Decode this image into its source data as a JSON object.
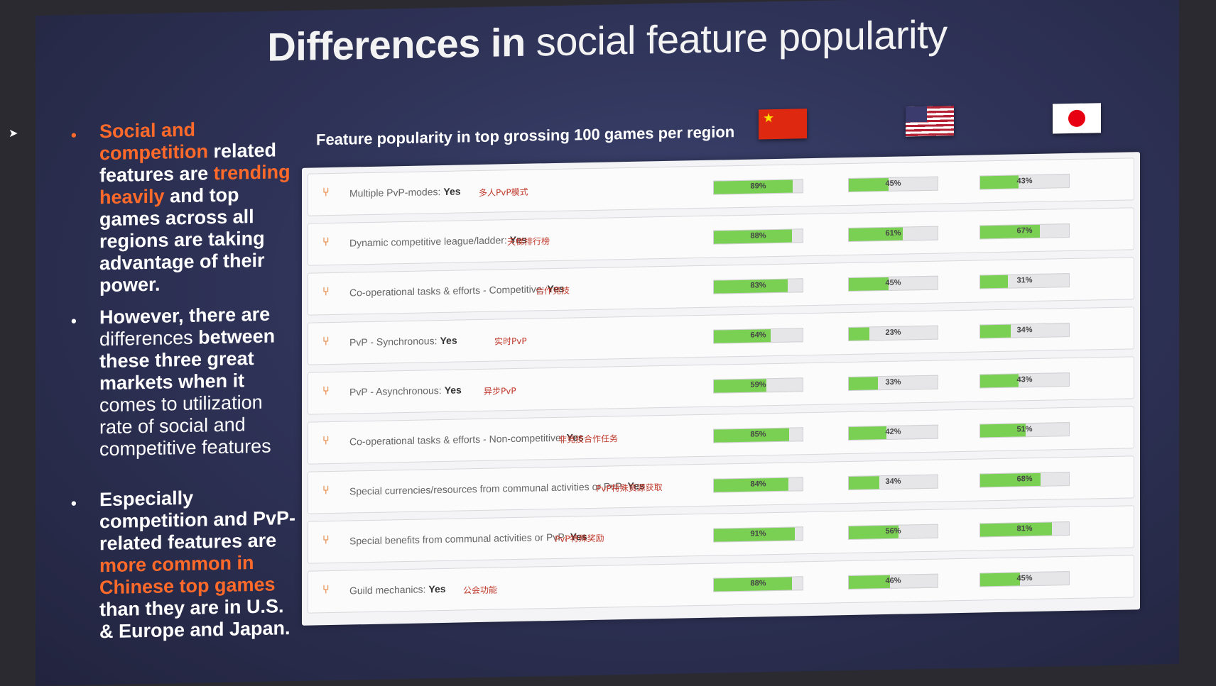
{
  "title": {
    "bold": "Differences in",
    "rest": "social feature popularity"
  },
  "bullets": [
    {
      "parts": [
        {
          "text": "Social and competition",
          "style": "hl"
        },
        {
          "text": " related features are ",
          "style": "plain"
        },
        {
          "text": "trending heavily",
          "style": "hl"
        },
        {
          "text": " and top games across all regions are taking advantage of their power.",
          "style": "plain"
        }
      ]
    },
    {
      "parts": [
        {
          "text": "However, there are ",
          "style": "plain"
        },
        {
          "text": "differences",
          "style": "thin"
        },
        {
          "text": " between these three great markets when it ",
          "style": "plain"
        },
        {
          "text": "comes to utilization rate of social and competitive features",
          "style": "thin"
        }
      ]
    },
    {
      "parts": [
        {
          "text": "Especially competition and PvP-related features are ",
          "style": "plain"
        },
        {
          "text": "more common in Chinese top games",
          "style": "hl"
        },
        {
          "text": " than they are in U.S. & Europe and Japan.",
          "style": "plain"
        }
      ]
    }
  ],
  "subtitle": "Feature popularity in top grossing 100 games per region",
  "regions": [
    "China",
    "USA",
    "Japan"
  ],
  "features": [
    {
      "label": "Multiple PvP-modes:",
      "yes": "Yes",
      "note": "多人PvP模式",
      "values": [
        89,
        45,
        43
      ]
    },
    {
      "label": "Dynamic competitive league/ladder:",
      "yes": "Yes",
      "note": "天梯排行榜",
      "values": [
        88,
        61,
        67
      ]
    },
    {
      "label": "Co-operational tasks & efforts - Competitive:",
      "yes": "Yes",
      "note": "合作竞技",
      "values": [
        83,
        45,
        31
      ]
    },
    {
      "label": "PvP - Synchronous:",
      "yes": "Yes",
      "note": "实时PvP",
      "values": [
        64,
        23,
        34
      ]
    },
    {
      "label": "PvP - Asynchronous:",
      "yes": "Yes",
      "note": "异步PvP",
      "values": [
        59,
        33,
        43
      ]
    },
    {
      "label": "Co-operational tasks & efforts - Non-competitive:",
      "yes": "Yes",
      "note": "非竞技合作任务",
      "values": [
        85,
        42,
        51
      ]
    },
    {
      "label": "Special currencies/resources from communal activities or PvP:",
      "yes": "Yes",
      "note": "PvP特殊资源获取",
      "values": [
        84,
        34,
        68
      ]
    },
    {
      "label": "Special benefits from communal activities or PvP:",
      "yes": "Yes",
      "note": "PvP特殊奖励",
      "values": [
        91,
        56,
        81
      ]
    },
    {
      "label": "Guild mechanics:",
      "yes": "Yes",
      "note": "公会功能",
      "values": [
        88,
        46,
        45
      ]
    }
  ],
  "colors": {
    "accent": "#ff6a2a",
    "bar": "#79d052",
    "note": "#c0392b"
  }
}
